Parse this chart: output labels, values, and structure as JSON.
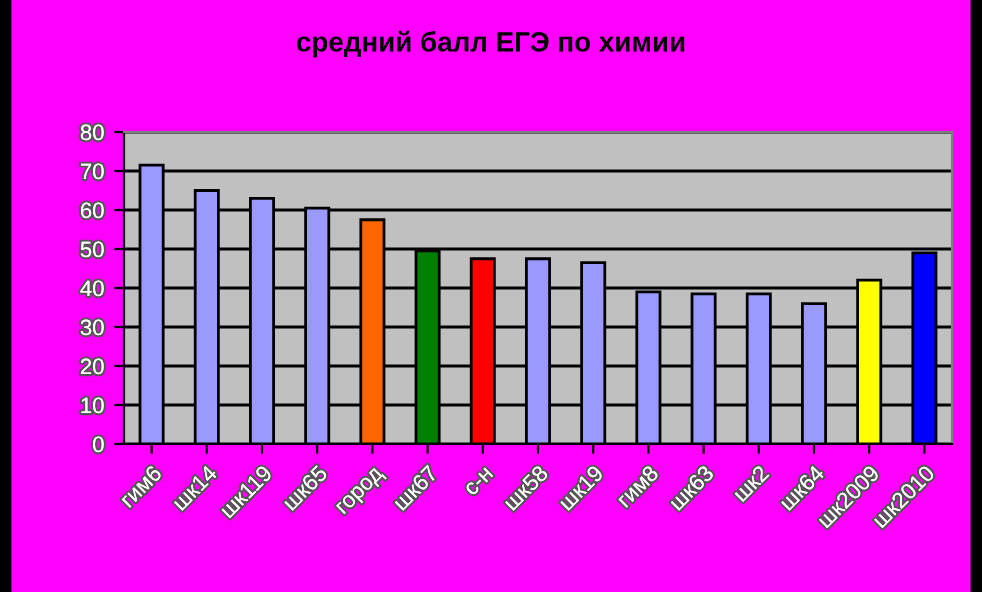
{
  "chart_data": {
    "type": "bar",
    "title": "средний балл ЕГЭ по химии",
    "categories": [
      "гим6",
      "шк14",
      "шк119",
      "шк65",
      "город",
      "шк67",
      "с-н",
      "шк58",
      "шк19",
      "гим8",
      "шк63",
      "шк2",
      "шк64",
      "шк2009",
      "шк2010"
    ],
    "values": [
      71.5,
      65,
      63,
      60.5,
      57.5,
      49.5,
      47.5,
      47.5,
      46.5,
      39,
      38.5,
      38.5,
      36,
      42,
      49
    ],
    "colors": [
      "#9999ff",
      "#9999ff",
      "#9999ff",
      "#9999ff",
      "#ff6600",
      "#008000",
      "#ff0000",
      "#9999ff",
      "#9999ff",
      "#9999ff",
      "#9999ff",
      "#9999ff",
      "#9999ff",
      "#ffff00",
      "#0000ff"
    ],
    "ylim": [
      0,
      80
    ],
    "yticks": [
      0,
      10,
      20,
      30,
      40,
      50,
      60,
      70,
      80
    ],
    "grid": "y",
    "legend": false
  }
}
